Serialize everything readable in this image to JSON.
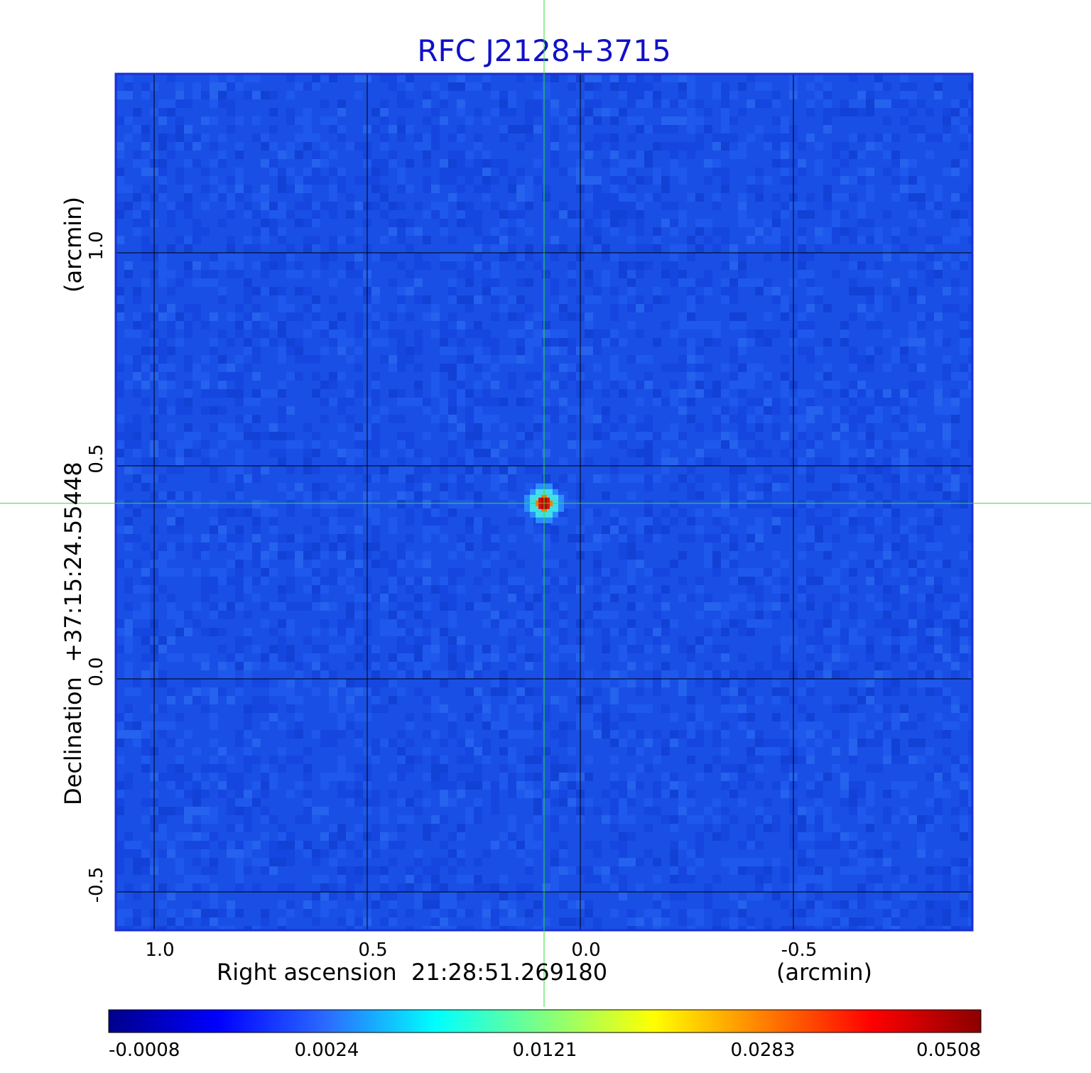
{
  "chart_data": {
    "type": "heatmap",
    "title": "RFC J2128+3715",
    "xlabel": "Right ascension  21:28:51.269180",
    "xunit": "(arcmin)",
    "ylabel": "Declination  +37:15:24.55448",
    "yunit": "(arcmin)",
    "xlim": [
      1.09,
      -0.92
    ],
    "ylim": [
      -0.59,
      1.42
    ],
    "x_ticks": [
      1.0,
      0.5,
      0.0,
      -0.5
    ],
    "x_tick_labels": [
      "1.0",
      "0.5",
      "0.0",
      "-0.5"
    ],
    "y_ticks": [
      -0.5,
      0.0,
      0.5,
      1.0
    ],
    "y_tick_labels": [
      "-0.5",
      "0.0",
      "0.5",
      "1.0"
    ],
    "grid": true,
    "crosshair": {
      "x": 0.085,
      "y": 0.412
    },
    "source_peak": {
      "x": 0.085,
      "y": 0.412,
      "value": 0.0508
    },
    "colorbar": {
      "ticks": [
        -0.0008,
        0.0024,
        0.0121,
        0.0283,
        0.0508
      ],
      "tick_labels": [
        "-0.0008",
        "0.0024",
        "0.0121",
        "0.0283",
        "0.0508"
      ],
      "colormap": [
        "#00008b",
        "#0000ff",
        "#2b6bff",
        "#00ffff",
        "#80ff80",
        "#ffff00",
        "#ff8000",
        "#ff0000",
        "#8b0000"
      ]
    },
    "background_color": "#1a4fe6"
  },
  "colors": {
    "title": "#1010c8",
    "frame": "#1a2fd6",
    "grid": "#000000",
    "crosshair": "#33dd33"
  }
}
